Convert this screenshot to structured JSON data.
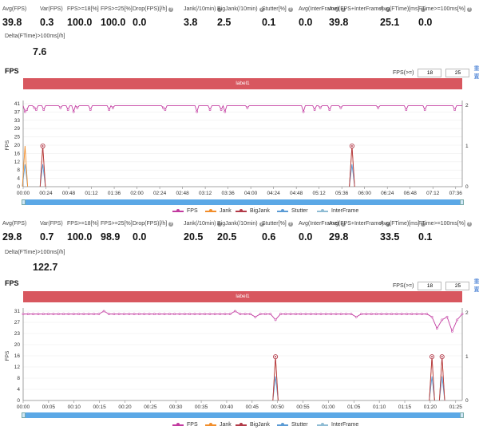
{
  "stats_labels": [
    "Avg(FPS)",
    "Var(FPS)",
    "FPS>=18[%]",
    "FPS>=25[%]",
    "Drop(FPS)[/h]",
    "Jank(/10min)",
    "BigJank(/10min)",
    "Stutter[%]",
    "Avg(InterFrame)",
    "Avg(FPS+InterFrame)",
    "Avg(FTime)[ms]",
    "FTime>=100ms[%]"
  ],
  "delta_label": "Delta(FTime)>100ms[/h]",
  "info_icon": "question-circle-icon",
  "panel1": {
    "stats": [
      "39.8",
      "0.3",
      "100.0",
      "100.0",
      "0.0",
      "3.8",
      "2.5",
      "0.1",
      "0.0",
      "39.8",
      "25.1",
      "0.0"
    ],
    "delta_value": "7.6",
    "title": "FPS",
    "fps_label": "FPS(>=)",
    "fps_low": "18",
    "fps_high": "25",
    "reset_label": "重置",
    "bar_label": "label1"
  },
  "panel2": {
    "stats": [
      "29.8",
      "0.7",
      "100.0",
      "98.9",
      "0.0",
      "20.5",
      "20.5",
      "0.6",
      "0.0",
      "29.8",
      "33.5",
      "0.1"
    ],
    "delta_value": "122.7",
    "title": "FPS",
    "fps_label": "FPS(>=)",
    "fps_low": "18",
    "fps_high": "25",
    "reset_label": "重置",
    "bar_label": "label1"
  },
  "legend": [
    {
      "name": "FPS",
      "color": "#c23ba0"
    },
    {
      "name": "Jank",
      "color": "#f28e2b"
    },
    {
      "name": "BigJank",
      "color": "#b23a48"
    },
    {
      "name": "Stutter",
      "color": "#5b9bd5"
    },
    {
      "name": "InterFrame",
      "color": "#8fbcd4"
    }
  ],
  "chart_data": [
    {
      "type": "line",
      "title": "FPS",
      "ylabel": "FPS",
      "yticks_left": [
        "0",
        "4",
        "8",
        "12",
        "16",
        "20",
        "25",
        "29",
        "33",
        "37",
        "41"
      ],
      "yticks_right": [
        "0",
        "1",
        "2"
      ],
      "x_ticks": [
        "00:00",
        "00:24",
        "00:48",
        "01:12",
        "01:36",
        "02:00",
        "02:24",
        "02:48",
        "03:12",
        "03:36",
        "04:00",
        "04:24",
        "04:48",
        "05:12",
        "05:36",
        "06:00",
        "06:24",
        "06:48",
        "07:12",
        "07:36"
      ],
      "ylim": [
        0,
        41
      ],
      "x_range_seconds": [
        0,
        470
      ],
      "series": [
        {
          "name": "FPS",
          "values_note": "mostly 40",
          "baseline": 40,
          "dips": [
            [
              2,
              37
            ],
            [
              4,
              38
            ],
            [
              12,
              39
            ],
            [
              14,
              38
            ],
            [
              19,
              39
            ],
            [
              22,
              38
            ],
            [
              40,
              39
            ],
            [
              48,
              38
            ],
            [
              54,
              37
            ],
            [
              58,
              39
            ],
            [
              72,
              38
            ],
            [
              92,
              38
            ],
            [
              96,
              39
            ],
            [
              125,
              39
            ],
            [
              135,
              38
            ],
            [
              150,
              39
            ],
            [
              152,
              38
            ],
            [
              175,
              38
            ],
            [
              186,
              37
            ],
            [
              200,
              38
            ],
            [
              205,
              39
            ],
            [
              212,
              38
            ],
            [
              216,
              37
            ],
            [
              225,
              38
            ],
            [
              240,
              39
            ],
            [
              275,
              38
            ],
            [
              295,
              39
            ],
            [
              300,
              37
            ],
            [
              312,
              38
            ],
            [
              318,
              39
            ],
            [
              328,
              38
            ],
            [
              340,
              39
            ],
            [
              355,
              38
            ],
            [
              380,
              39
            ],
            [
              397,
              38
            ],
            [
              410,
              38
            ],
            [
              415,
              39
            ],
            [
              430,
              38
            ],
            [
              455,
              39
            ],
            [
              462,
              38
            ]
          ]
        },
        {
          "name": "Jank",
          "events_x": [
            2,
            21,
            352
          ]
        },
        {
          "name": "BigJank",
          "events_x": [
            21,
            352
          ]
        },
        {
          "name": "Stutter",
          "events_x": [
            2,
            21,
            352
          ]
        }
      ]
    },
    {
      "type": "line",
      "title": "FPS",
      "ylabel": "FPS",
      "yticks_left": [
        "0",
        "4",
        "8",
        "12",
        "16",
        "20",
        "23",
        "27",
        "31"
      ],
      "yticks_right": [
        "0",
        "1",
        "2"
      ],
      "x_ticks": [
        "00:00",
        "00:05",
        "00:10",
        "00:15",
        "00:20",
        "00:25",
        "00:30",
        "00:35",
        "00:40",
        "00:45",
        "00:50",
        "00:55",
        "01:00",
        "01:05",
        "01:10",
        "01:15",
        "01:20",
        "01:25"
      ],
      "ylim": [
        0,
        31
      ],
      "x_range_seconds": [
        0,
        87
      ],
      "series": [
        {
          "name": "FPS",
          "values": [
            30,
            30,
            30,
            30,
            30,
            30,
            30,
            30,
            30,
            30,
            30,
            30,
            30,
            30,
            30,
            30,
            31,
            30,
            30,
            30,
            30,
            30,
            30,
            30,
            30,
            30,
            30,
            30,
            30,
            30,
            30,
            30,
            30,
            30,
            30,
            30,
            30,
            30,
            30,
            30,
            30,
            30,
            31,
            30,
            30,
            30,
            29,
            30,
            30,
            30,
            28,
            30,
            30,
            30,
            30,
            30,
            30,
            30,
            30,
            30,
            30,
            30,
            30,
            30,
            30,
            30,
            29,
            30,
            30,
            30,
            30,
            30,
            30,
            30,
            30,
            30,
            30,
            30,
            30,
            30,
            30,
            29,
            25,
            28,
            29,
            24,
            28,
            30
          ]
        },
        {
          "name": "Jank",
          "events_x": [
            50,
            81,
            83
          ]
        },
        {
          "name": "BigJank",
          "events_x": [
            50,
            81,
            83
          ]
        },
        {
          "name": "Stutter",
          "events_x": [
            50,
            81,
            83
          ]
        }
      ]
    }
  ]
}
